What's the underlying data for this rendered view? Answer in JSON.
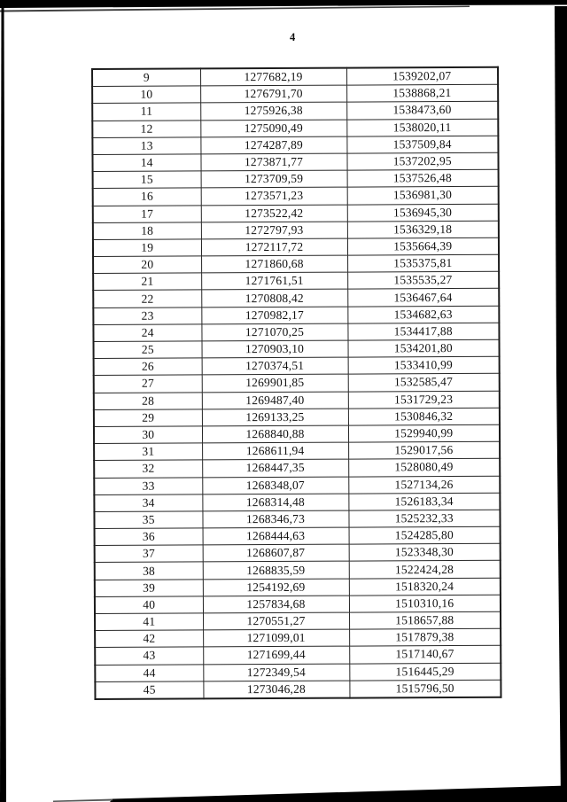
{
  "page": {
    "number": "4"
  },
  "table": {
    "first_row_index": 9,
    "last_row_index": 45,
    "rows": [
      [
        "9",
        "1277682,19",
        "1539202,07"
      ],
      [
        "10",
        "1276791,70",
        "1538868,21"
      ],
      [
        "11",
        "1275926,38",
        "1538473,60"
      ],
      [
        "12",
        "1275090,49",
        "1538020,11"
      ],
      [
        "13",
        "1274287,89",
        "1537509,84"
      ],
      [
        "14",
        "1273871,77",
        "1537202,95"
      ],
      [
        "15",
        "1273709,59",
        "1537526,48"
      ],
      [
        "16",
        "1273571,23",
        "1536981,30"
      ],
      [
        "17",
        "1273522,42",
        "1536945,30"
      ],
      [
        "18",
        "1272797,93",
        "1536329,18"
      ],
      [
        "19",
        "1272117,72",
        "1535664,39"
      ],
      [
        "20",
        "1271860,68",
        "1535375,81"
      ],
      [
        "21",
        "1271761,51",
        "1535535,27"
      ],
      [
        "22",
        "1270808,42",
        "1536467,64"
      ],
      [
        "23",
        "1270982,17",
        "1534682,63"
      ],
      [
        "24",
        "1271070,25",
        "1534417,88"
      ],
      [
        "25",
        "1270903,10",
        "1534201,80"
      ],
      [
        "26",
        "1270374,51",
        "1533410,99"
      ],
      [
        "27",
        "1269901,85",
        "1532585,47"
      ],
      [
        "28",
        "1269487,40",
        "1531729,23"
      ],
      [
        "29",
        "1269133,25",
        "1530846,32"
      ],
      [
        "30",
        "1268840,88",
        "1529940,99"
      ],
      [
        "31",
        "1268611,94",
        "1529017,56"
      ],
      [
        "32",
        "1268447,35",
        "1528080,49"
      ],
      [
        "33",
        "1268348,07",
        "1527134,26"
      ],
      [
        "34",
        "1268314,48",
        "1526183,34"
      ],
      [
        "35",
        "1268346,73",
        "1525232,33"
      ],
      [
        "36",
        "1268444,63",
        "1524285,80"
      ],
      [
        "37",
        "1268607,87",
        "1523348,30"
      ],
      [
        "38",
        "1268835,59",
        "1522424,28"
      ],
      [
        "39",
        "1254192,69",
        "1518320,24"
      ],
      [
        "40",
        "1257834,68",
        "1510310,16"
      ],
      [
        "41",
        "1270551,27",
        "1518657,88"
      ],
      [
        "42",
        "1271099,01",
        "1517879,38"
      ],
      [
        "43",
        "1271699,44",
        "1517140,67"
      ],
      [
        "44",
        "1272349,54",
        "1516445,29"
      ],
      [
        "45",
        "1273046,28",
        "1515796,50"
      ]
    ]
  },
  "colors": {
    "paper": "#ffffff",
    "ink": "#111111",
    "table_border": "#1c1c1c",
    "scan_edge": "#000000"
  }
}
